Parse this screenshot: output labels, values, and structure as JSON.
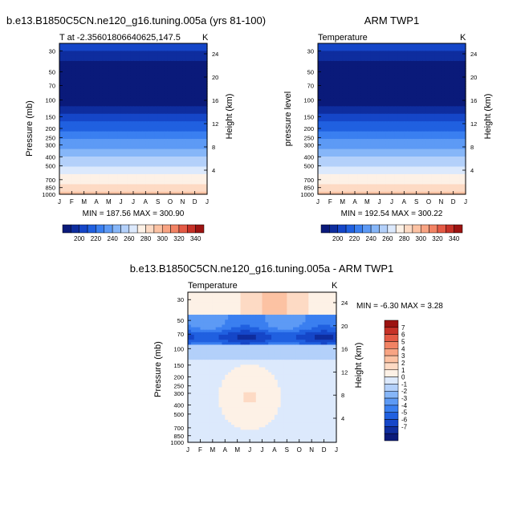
{
  "colors": {
    "temp_scale": [
      "#0a1a7a",
      "#0e2d9e",
      "#1546c8",
      "#2060e0",
      "#3a7ff0",
      "#5d9af5",
      "#86b6f8",
      "#b3d0fa",
      "#dce9fc",
      "#fdf1e6",
      "#fddac4",
      "#fcc2a3",
      "#f8a483",
      "#f28364",
      "#e45a45",
      "#c63127",
      "#9c1311"
    ],
    "diff_scale": [
      "#0a1a7a",
      "#0e2d9e",
      "#1546c8",
      "#2060e0",
      "#3a7ff0",
      "#5d9af5",
      "#86b6f8",
      "#b3d0fa",
      "#dce9fc",
      "#fdf1e6",
      "#fddac4",
      "#fcc2a3",
      "#f8a483",
      "#f28364",
      "#e45a45",
      "#c63127",
      "#9c1311"
    ]
  },
  "chart_data": [
    {
      "type": "heatmap",
      "title": "b.e13.B1850C5CN.ne120_g16.tuning.005a (yrs 81-100)",
      "left_label": "T at -2.35601806640625,147.5",
      "right_label": "K",
      "ylabel": "Pressure (mb)",
      "ylabel_right": "Height (km)",
      "x_ticks": [
        "J",
        "F",
        "M",
        "A",
        "M",
        "J",
        "J",
        "A",
        "S",
        "O",
        "N",
        "D",
        "J"
      ],
      "pressure_ticks": [
        "30",
        "50",
        "70",
        "100",
        "150",
        "200",
        "250",
        "300",
        "400",
        "500",
        "700",
        "850",
        "1000"
      ],
      "height_ticks": [
        "24",
        "20",
        "16",
        "12",
        "8",
        "4"
      ],
      "stats": "MIN = 187.56 MAX = 300.90",
      "colorbar_labels": [
        "200",
        "220",
        "240",
        "260",
        "280",
        "300",
        "320",
        "340"
      ],
      "ylim_mb": [
        1000,
        25
      ]
    },
    {
      "type": "heatmap",
      "title": "ARM TWP1",
      "left_label": "Temperature",
      "right_label": "K",
      "ylabel": "pressure level",
      "ylabel_right": "Height (km)",
      "x_ticks": [
        "J",
        "F",
        "M",
        "A",
        "M",
        "J",
        "J",
        "A",
        "S",
        "O",
        "N",
        "D",
        "J"
      ],
      "pressure_ticks": [
        "30",
        "50",
        "70",
        "100",
        "150",
        "200",
        "250",
        "300",
        "400",
        "500",
        "700",
        "850",
        "1000"
      ],
      "height_ticks": [
        "24",
        "20",
        "16",
        "12",
        "8",
        "4"
      ],
      "stats": "MIN = 192.54 MAX = 300.22",
      "colorbar_labels": [
        "200",
        "220",
        "240",
        "260",
        "280",
        "300",
        "320",
        "340"
      ],
      "ylim_mb": [
        1000,
        25
      ]
    },
    {
      "type": "heatmap",
      "title": "b.e13.B1850C5CN.ne120_g16.tuning.005a - ARM TWP1",
      "left_label": "Temperature",
      "right_label": "K",
      "ylabel": "Pressure (mb)",
      "ylabel_right": "Height (km)",
      "x_ticks": [
        "J",
        "F",
        "M",
        "A",
        "M",
        "J",
        "J",
        "A",
        "S",
        "O",
        "N",
        "D",
        "J"
      ],
      "pressure_ticks": [
        "30",
        "50",
        "70",
        "100",
        "150",
        "200",
        "250",
        "300",
        "400",
        "500",
        "700",
        "850",
        "1000"
      ],
      "height_ticks": [
        "24",
        "20",
        "16",
        "12",
        "8",
        "4"
      ],
      "stats": "MIN =  -6.30 MAX =   3.28",
      "colorbar_labels": [
        "7",
        "6",
        "5",
        "4",
        "3",
        "2",
        "1",
        "0",
        "-1",
        "-2",
        "-3",
        "-4",
        "-5",
        "-6",
        "-7"
      ],
      "ylim_mb": [
        1000,
        25
      ]
    }
  ]
}
